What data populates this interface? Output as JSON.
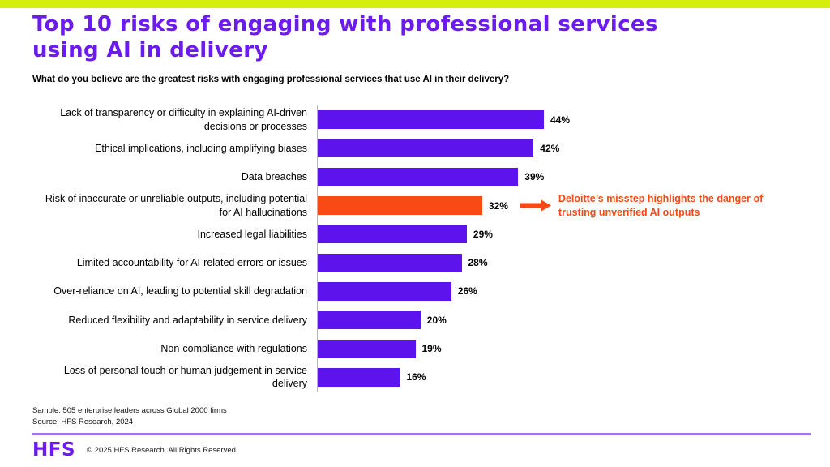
{
  "header": {
    "title_line1": "Top 10 risks of engaging with professional services",
    "title_line2": "using AI in delivery",
    "subtitle": "What do you believe are the greatest risks with engaging professional services that use AI in their delivery?"
  },
  "chart_data": {
    "type": "bar",
    "orientation": "horizontal",
    "title": "Top 10 risks of engaging with professional services using AI in delivery",
    "question": "What do you believe are the greatest risks with engaging professional services that use AI in their delivery?",
    "categories": [
      "Lack of transparency or difficulty in explaining AI-driven decisions or processes",
      "Ethical implications, including amplifying biases",
      "Data breaches",
      "Risk of inaccurate or unreliable outputs, including potential for AI hallucinations",
      "Increased legal liabilities",
      "Limited accountability for AI-related errors or issues",
      "Over-reliance on AI, leading to potential skill degradation",
      "Reduced flexibility and adaptability in service delivery",
      "Non-compliance with regulations",
      "Loss of personal touch or human judgement in service delivery"
    ],
    "values": [
      44,
      42,
      39,
      32,
      29,
      28,
      26,
      20,
      19,
      16
    ],
    "value_labels": [
      "44%",
      "42%",
      "39%",
      "32%",
      "29%",
      "28%",
      "26%",
      "20%",
      "19%",
      "16%"
    ],
    "unit": "%",
    "xlim": [
      0,
      47
    ],
    "grid": false,
    "legend": "none",
    "bar_color": "#5d13ec",
    "highlight_color": "#f94a16",
    "highlight_index": 3,
    "annotation": {
      "text": "Deloitte’s misstep highlights the danger of trusting unverified AI outputs",
      "target_index": 3,
      "color": "#f94a16"
    }
  },
  "footer": {
    "sample": "Sample: 505 enterprise leaders across Global 2000 firms",
    "source": "Source: HFS Research, 2024",
    "logo": "HFS",
    "copyright": "© 2025 HFS Research. All Rights Reserved."
  },
  "colors": {
    "accent_top_bar": "#d6ee0e",
    "title_purple": "#6b1bef",
    "bar_purple": "#5d13ec",
    "highlight_orange": "#f94a16",
    "divider_purple": "#a873e8"
  }
}
